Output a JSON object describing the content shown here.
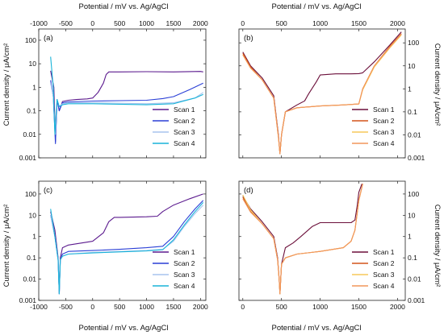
{
  "figure": {
    "top_axis_title": "Potential / mV vs. Ag/AgCl",
    "bottom_axis_title": "Potential / mV vs. Ag/AgCl",
    "left_axis_title": "Current density / μA/cm²",
    "right_axis_title": "Current density / μA/cm²"
  },
  "chart_data": [
    {
      "panel": "(a)",
      "type": "line",
      "xlabel": "Potential / mV vs. Ag/AgCl",
      "xlabel_position": "top",
      "ylabel": "Current density / μA/cm²",
      "ylabel_position": "left",
      "xlim": [
        -1000,
        2100
      ],
      "ylim": [
        0.001,
        300
      ],
      "yscale": "log",
      "xticks": [
        -1000,
        -500,
        0,
        500,
        1000,
        1500,
        2000
      ],
      "yticks": [
        0.001,
        0.01,
        0.1,
        1,
        10,
        100
      ],
      "ytick_labels": [
        "0.001",
        "0.01",
        "0.1",
        "1",
        "10",
        "100"
      ],
      "legend_position": "bottom-right",
      "series": [
        {
          "name": "Scan 1",
          "color": "#5b1a8e",
          "x": [
            -780,
            -720,
            -690,
            -660,
            -620,
            -560,
            -450,
            -300,
            -100,
            0,
            100,
            200,
            250,
            300,
            500,
            1000,
            1500,
            2000,
            2050
          ],
          "y": [
            5,
            1,
            0.005,
            0.3,
            0.1,
            0.25,
            0.28,
            0.3,
            0.32,
            0.35,
            0.6,
            1.5,
            3.5,
            4.5,
            4.5,
            4.6,
            4.5,
            4.7,
            4.5
          ]
        },
        {
          "name": "Scan 2",
          "color": "#2a3fd6",
          "x": [
            -780,
            -730,
            -690,
            -660,
            -620,
            -560,
            -450,
            -200,
            0,
            500,
            1000,
            1300,
            1500,
            1800,
            2050
          ],
          "y": [
            2,
            0.4,
            0.004,
            0.3,
            0.1,
            0.22,
            0.24,
            0.25,
            0.26,
            0.27,
            0.28,
            0.33,
            0.4,
            0.8,
            1.5
          ]
        },
        {
          "name": "Scan 3",
          "color": "#a7c4ee",
          "x": [
            -780,
            -730,
            -690,
            -660,
            -620,
            -560,
            -450,
            0,
            500,
            1000,
            1500,
            1900,
            2050
          ],
          "y": [
            1.5,
            0.4,
            0.01,
            0.3,
            0.15,
            0.2,
            0.22,
            0.22,
            0.21,
            0.2,
            0.22,
            0.35,
            0.6
          ]
        },
        {
          "name": "Scan 4",
          "color": "#19b4d9",
          "x": [
            -780,
            -730,
            -700,
            -660,
            -620,
            -560,
            -450,
            0,
            500,
            1000,
            1500,
            1900,
            2050
          ],
          "y": [
            20,
            1,
            0.01,
            0.3,
            0.15,
            0.18,
            0.2,
            0.2,
            0.19,
            0.18,
            0.2,
            0.35,
            0.5
          ]
        }
      ]
    },
    {
      "panel": "(b)",
      "type": "line",
      "xlabel": "Potential / mV vs. Ag/AgCl",
      "xlabel_position": "top",
      "ylabel": "Current density / μA/cm²",
      "ylabel_position": "right",
      "xlim": [
        -50,
        2100
      ],
      "ylim": [
        0.001,
        400
      ],
      "yscale": "log",
      "xticks": [
        0,
        500,
        1000,
        1500,
        2000
      ],
      "yticks": [
        0.001,
        0.01,
        0.1,
        1,
        10,
        100
      ],
      "ytick_labels": [
        "0.001",
        "0.01",
        "0.1",
        "1",
        "10",
        "100"
      ],
      "legend_position": "bottom-right",
      "series": [
        {
          "name": "Scan 1",
          "color": "#6b0f3a",
          "x": [
            0,
            100,
            250,
            400,
            460,
            480,
            500,
            550,
            700,
            800,
            850,
            950,
            1000,
            1200,
            1400,
            1500,
            1550,
            1700,
            1900,
            2050
          ],
          "y": [
            40,
            10,
            3,
            0.5,
            0.01,
            0.0015,
            0.01,
            0.1,
            0.2,
            0.3,
            0.6,
            2,
            4,
            4.5,
            4.5,
            4.6,
            5,
            15,
            80,
            300
          ]
        },
        {
          "name": "Scan 2",
          "color": "#d4541a",
          "x": [
            0,
            100,
            250,
            400,
            460,
            480,
            500,
            550,
            700,
            1000,
            1300,
            1500,
            1550,
            1700,
            1900,
            2050
          ],
          "y": [
            35,
            9,
            2.5,
            0.4,
            0.008,
            0.0015,
            0.01,
            0.1,
            0.15,
            0.18,
            0.2,
            0.22,
            1,
            10,
            70,
            250
          ]
        },
        {
          "name": "Scan 3",
          "color": "#f7c95a",
          "x": [
            0,
            100,
            250,
            400,
            460,
            480,
            500,
            550,
            700,
            1000,
            1300,
            1500,
            1550,
            1700,
            1900,
            2050
          ],
          "y": [
            30,
            8,
            2.5,
            0.4,
            0.008,
            0.0015,
            0.01,
            0.1,
            0.15,
            0.18,
            0.2,
            0.22,
            0.9,
            9,
            60,
            220
          ]
        },
        {
          "name": "Scan 4",
          "color": "#f2955a",
          "x": [
            0,
            100,
            250,
            400,
            460,
            480,
            500,
            550,
            700,
            1000,
            1300,
            1500,
            1550,
            1700,
            1900,
            2050
          ],
          "y": [
            30,
            8,
            2.5,
            0.4,
            0.008,
            0.0015,
            0.01,
            0.1,
            0.15,
            0.18,
            0.2,
            0.22,
            1,
            10,
            65,
            240
          ]
        }
      ]
    },
    {
      "panel": "(c)",
      "type": "line",
      "xlabel": "Potential / mV vs. Ag/AgCl",
      "xlabel_position": "bottom",
      "ylabel": "Current density / μA/cm²",
      "ylabel_position": "left",
      "xlim": [
        -1000,
        2100
      ],
      "ylim": [
        0.001,
        400
      ],
      "yscale": "log",
      "xticks": [
        -1000,
        -500,
        0,
        500,
        1000,
        1500,
        2000
      ],
      "yticks": [
        0.001,
        0.01,
        0.1,
        1,
        10,
        100
      ],
      "ytick_labels": [
        "0.001",
        "0.01",
        "0.1",
        "1",
        "10",
        "100"
      ],
      "legend_position": "bottom-right",
      "series": [
        {
          "name": "Scan 1",
          "color": "#5b1a8e",
          "x": [
            -780,
            -700,
            -640,
            -620,
            -600,
            -560,
            -450,
            -200,
            0,
            200,
            300,
            400,
            500,
            1000,
            1200,
            1300,
            1500,
            1800,
            2050
          ],
          "y": [
            15,
            2,
            0.1,
            0.002,
            0.1,
            0.3,
            0.4,
            0.5,
            0.6,
            1.5,
            5,
            8,
            8,
            8.5,
            9,
            15,
            30,
            60,
            100
          ]
        },
        {
          "name": "Scan 2",
          "color": "#2a3fd6",
          "x": [
            -780,
            -700,
            -640,
            -620,
            -600,
            -560,
            -450,
            0,
            500,
            1000,
            1300,
            1500,
            1700,
            1900,
            2050
          ],
          "y": [
            10,
            1,
            0.08,
            0.002,
            0.08,
            0.15,
            0.2,
            0.22,
            0.25,
            0.3,
            0.35,
            1,
            5,
            20,
            50
          ]
        },
        {
          "name": "Scan 3",
          "color": "#a7c4ee",
          "x": [
            -780,
            -700,
            -640,
            -620,
            -600,
            -560,
            -450,
            0,
            500,
            1000,
            1300,
            1500,
            1700,
            1900,
            2050
          ],
          "y": [
            10,
            1,
            0.08,
            0.002,
            0.08,
            0.12,
            0.15,
            0.18,
            0.2,
            0.22,
            0.25,
            0.6,
            3,
            12,
            30
          ]
        },
        {
          "name": "Scan 4",
          "color": "#19b4d9",
          "x": [
            -780,
            -700,
            -640,
            -620,
            -600,
            -560,
            -450,
            0,
            500,
            1000,
            1300,
            1500,
            1700,
            1900,
            2050
          ],
          "y": [
            20,
            1,
            0.08,
            0.002,
            0.08,
            0.12,
            0.15,
            0.17,
            0.19,
            0.21,
            0.24,
            0.7,
            3.5,
            15,
            40
          ]
        }
      ]
    },
    {
      "panel": "(d)",
      "type": "line",
      "xlabel": "Potential / mV vs. Ag/AgCl",
      "xlabel_position": "bottom",
      "ylabel": "Current density / μA/cm²",
      "ylabel_position": "right",
      "xlim": [
        -50,
        2100
      ],
      "ylim": [
        0.001,
        400
      ],
      "yscale": "log",
      "xticks": [
        0,
        500,
        1000,
        1500,
        2000
      ],
      "yticks": [
        0.001,
        0.01,
        0.1,
        1,
        10,
        100
      ],
      "ytick_labels": [
        "0.001",
        "0.01",
        "0.1",
        "1",
        "10",
        "100"
      ],
      "legend_position": "bottom-right",
      "series": [
        {
          "name": "Scan 1",
          "color": "#6b0f3a",
          "x": [
            0,
            100,
            250,
            400,
            450,
            470,
            480,
            500,
            550,
            650,
            750,
            900,
            1000,
            1200,
            1400,
            1450,
            1480,
            1500,
            1540
          ],
          "y": [
            80,
            20,
            5,
            1,
            0.1,
            0.01,
            0.002,
            0.05,
            0.3,
            0.5,
            1,
            3,
            4.5,
            4.5,
            4.5,
            6,
            30,
            120,
            300
          ]
        },
        {
          "name": "Scan 2",
          "color": "#d4541a",
          "x": [
            0,
            100,
            250,
            400,
            450,
            470,
            480,
            500,
            550,
            700,
            1000,
            1300,
            1400,
            1450,
            1500,
            1550
          ],
          "y": [
            70,
            15,
            4,
            0.8,
            0.08,
            0.01,
            0.002,
            0.05,
            0.1,
            0.15,
            0.2,
            0.3,
            0.6,
            2,
            50,
            300
          ]
        },
        {
          "name": "Scan 3",
          "color": "#f7c95a",
          "x": [
            0,
            100,
            250,
            400,
            450,
            470,
            480,
            500,
            550,
            700,
            1000,
            1300,
            1400,
            1450,
            1500,
            1550
          ],
          "y": [
            90,
            18,
            4,
            0.8,
            0.08,
            0.01,
            0.002,
            0.05,
            0.1,
            0.15,
            0.2,
            0.3,
            0.6,
            2,
            50,
            300
          ]
        },
        {
          "name": "Scan 4",
          "color": "#f2955a",
          "x": [
            0,
            100,
            250,
            400,
            450,
            470,
            480,
            500,
            550,
            700,
            1000,
            1300,
            1400,
            1450,
            1500,
            1550
          ],
          "y": [
            60,
            14,
            4,
            0.8,
            0.08,
            0.01,
            0.002,
            0.05,
            0.1,
            0.15,
            0.2,
            0.3,
            0.6,
            2,
            50,
            300
          ]
        }
      ]
    }
  ]
}
